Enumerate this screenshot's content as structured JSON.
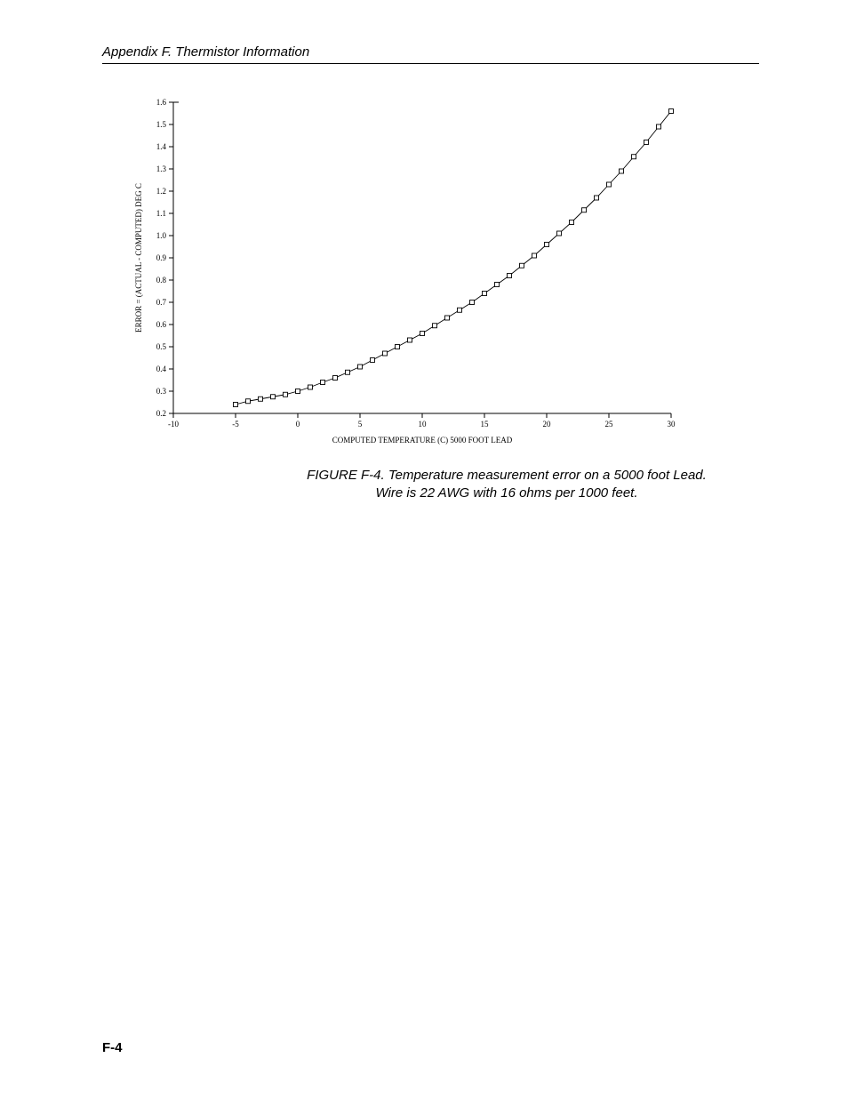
{
  "header": {
    "text": "Appendix F.  Thermistor Information"
  },
  "page_number": "F-4",
  "figure_caption": {
    "line1": "FIGURE F-4.  Temperature measurement error on a 5000 foot Lead.",
    "line2": "Wire is 22 AWG with 16 ohms per 1000 feet."
  },
  "chart": {
    "type": "line",
    "background_color": "#ffffff",
    "axis_color": "#000000",
    "series_color": "#000000",
    "marker_style": "square-open",
    "marker_size": 5,
    "line_width": 0.9,
    "tick_font_size": 9,
    "axis_label_font_size": 9,
    "xlabel": "COMPUTED TEMPERATURE (C) 5000 FOOT LEAD",
    "ylabel": "ERROR = (ACTUAL - COMPUTED) DEG C",
    "xlim": [
      -10,
      30
    ],
    "ylim": [
      0.2,
      1.6
    ],
    "xticks": [
      -10,
      -5,
      0,
      5,
      10,
      15,
      20,
      25,
      30
    ],
    "yticks": [
      0.2,
      0.3,
      0.4,
      0.5,
      0.6,
      0.7,
      0.8,
      0.9,
      1.0,
      1.1,
      1.2,
      1.3,
      1.4,
      1.5,
      1.6
    ],
    "data": [
      {
        "x": -5.0,
        "y": 0.24
      },
      {
        "x": -4.0,
        "y": 0.255
      },
      {
        "x": -3.0,
        "y": 0.265
      },
      {
        "x": -2.0,
        "y": 0.275
      },
      {
        "x": -1.0,
        "y": 0.285
      },
      {
        "x": 0.0,
        "y": 0.3
      },
      {
        "x": 1.0,
        "y": 0.318
      },
      {
        "x": 2.0,
        "y": 0.34
      },
      {
        "x": 3.0,
        "y": 0.36
      },
      {
        "x": 4.0,
        "y": 0.385
      },
      {
        "x": 5.0,
        "y": 0.41
      },
      {
        "x": 6.0,
        "y": 0.44
      },
      {
        "x": 7.0,
        "y": 0.47
      },
      {
        "x": 8.0,
        "y": 0.5
      },
      {
        "x": 9.0,
        "y": 0.53
      },
      {
        "x": 10.0,
        "y": 0.56
      },
      {
        "x": 11.0,
        "y": 0.595
      },
      {
        "x": 12.0,
        "y": 0.63
      },
      {
        "x": 13.0,
        "y": 0.665
      },
      {
        "x": 14.0,
        "y": 0.7
      },
      {
        "x": 15.0,
        "y": 0.74
      },
      {
        "x": 16.0,
        "y": 0.78
      },
      {
        "x": 17.0,
        "y": 0.82
      },
      {
        "x": 18.0,
        "y": 0.865
      },
      {
        "x": 19.0,
        "y": 0.91
      },
      {
        "x": 20.0,
        "y": 0.96
      },
      {
        "x": 21.0,
        "y": 1.01
      },
      {
        "x": 22.0,
        "y": 1.06
      },
      {
        "x": 23.0,
        "y": 1.115
      },
      {
        "x": 24.0,
        "y": 1.17
      },
      {
        "x": 25.0,
        "y": 1.23
      },
      {
        "x": 26.0,
        "y": 1.29
      },
      {
        "x": 27.0,
        "y": 1.355
      },
      {
        "x": 28.0,
        "y": 1.42
      },
      {
        "x": 29.0,
        "y": 1.49
      },
      {
        "x": 30.0,
        "y": 1.56
      }
    ]
  }
}
